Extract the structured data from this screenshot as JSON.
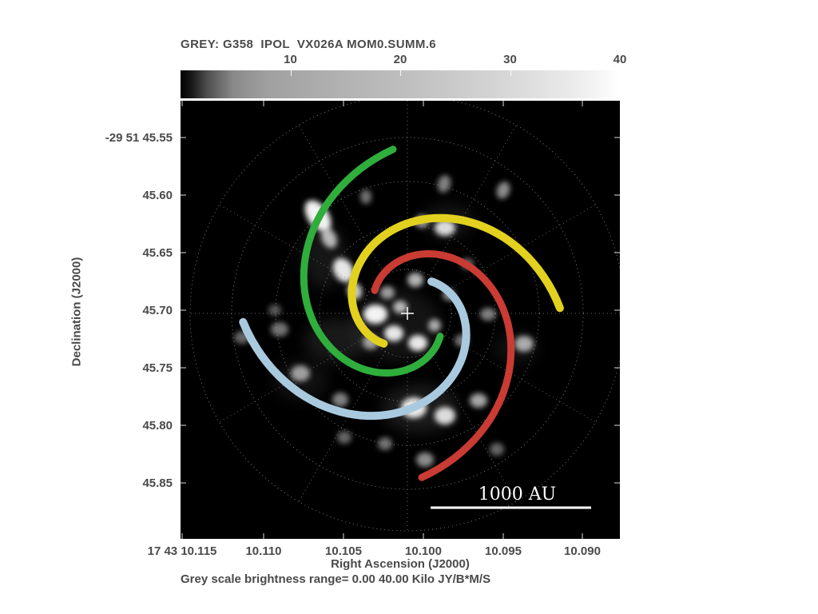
{
  "chart_data": {
    "type": "heatmap",
    "title": "GREY: G358  IPOL  VX026A MOM0.SUMM.6",
    "xlabel": "Right Ascension (J2000)",
    "ylabel": "Declination (J2000)",
    "caption": "Grey scale brightness range= 0.00 40.00 Kilo JY/B*M/S",
    "x_ticks": [
      "17 43 10.115",
      "10.110",
      "10.105",
      "10.100",
      "10.095",
      "10.090"
    ],
    "y_ticks": [
      "-29 51 45.55",
      "45.60",
      "45.65",
      "45.70",
      "45.75",
      "45.80",
      "45.85"
    ],
    "colorbar": {
      "tick_values": [
        10,
        20,
        30,
        40
      ],
      "range": [
        0,
        40
      ]
    },
    "center_marker": {
      "x": 284,
      "y": 266
    },
    "polar_grid": {
      "circle_radii": [
        55,
        110,
        165,
        220,
        272
      ],
      "n_spokes": 12,
      "spoke_inner_r": 55,
      "spoke_outer_r": 272
    },
    "spiral_arms": [
      {
        "name": "green",
        "color": "#2fae3c",
        "phi_out_deg": -95,
        "wrap_deg": 230,
        "r_in": 50,
        "r_out": 206,
        "width": 9
      },
      {
        "name": "yellow",
        "color": "#e2d11f",
        "phi_out_deg": -2,
        "wrap_deg": 230,
        "r_in": 48,
        "r_out": 191,
        "width": 10
      },
      {
        "name": "red",
        "color": "#c93b33",
        "phi_out_deg": 85,
        "wrap_deg": 230,
        "r_in": 50,
        "r_out": 206,
        "width": 9
      },
      {
        "name": "lightblue",
        "color": "#a9c9de",
        "phi_out_deg": 177,
        "wrap_deg": 230,
        "r_in": 50,
        "r_out": 206,
        "width": 10
      }
    ],
    "scalebar": {
      "label": "1000 AU",
      "x1": 313,
      "x2": 514,
      "y": 509
    },
    "maser_blobs": [
      {
        "x": 172,
        "y": 144,
        "rx": 13,
        "ry": 22,
        "rot": -35,
        "o": 0.95
      },
      {
        "x": 186,
        "y": 172,
        "rx": 9,
        "ry": 13,
        "rot": -25,
        "o": 0.7
      },
      {
        "x": 204,
        "y": 212,
        "rx": 12,
        "ry": 16,
        "rot": -30,
        "o": 0.9
      },
      {
        "x": 218,
        "y": 238,
        "rx": 9,
        "ry": 11,
        "rot": -20,
        "o": 0.8
      },
      {
        "x": 232,
        "y": 120,
        "rx": 7,
        "ry": 9,
        "rot": 0,
        "o": 0.45
      },
      {
        "x": 330,
        "y": 104,
        "rx": 8,
        "ry": 11,
        "rot": 15,
        "o": 0.5
      },
      {
        "x": 404,
        "y": 112,
        "rx": 8,
        "ry": 11,
        "rot": 20,
        "o": 0.55
      },
      {
        "x": 331,
        "y": 159,
        "rx": 13,
        "ry": 10,
        "rot": 0,
        "o": 0.85
      },
      {
        "x": 302,
        "y": 151,
        "rx": 9,
        "ry": 8,
        "rot": 0,
        "o": 0.6
      },
      {
        "x": 359,
        "y": 204,
        "rx": 8,
        "ry": 7,
        "rot": 0,
        "o": 0.4
      },
      {
        "x": 244,
        "y": 267,
        "rx": 15,
        "ry": 12,
        "rot": 0,
        "o": 0.95
      },
      {
        "x": 267,
        "y": 291,
        "rx": 12,
        "ry": 10,
        "rot": 0,
        "o": 0.9
      },
      {
        "x": 297,
        "y": 303,
        "rx": 12,
        "ry": 10,
        "rot": 0,
        "o": 0.9
      },
      {
        "x": 318,
        "y": 281,
        "rx": 8,
        "ry": 8,
        "rot": 0,
        "o": 0.65
      },
      {
        "x": 336,
        "y": 243,
        "rx": 8,
        "ry": 7,
        "rot": 0,
        "o": 0.55
      },
      {
        "x": 385,
        "y": 267,
        "rx": 10,
        "ry": 8,
        "rot": 0,
        "o": 0.5
      },
      {
        "x": 430,
        "y": 304,
        "rx": 12,
        "ry": 10,
        "rot": 0,
        "o": 0.65
      },
      {
        "x": 124,
        "y": 286,
        "rx": 11,
        "ry": 9,
        "rot": 0,
        "o": 0.45
      },
      {
        "x": 77,
        "y": 296,
        "rx": 10,
        "ry": 8,
        "rot": 0,
        "o": 0.4
      },
      {
        "x": 150,
        "y": 341,
        "rx": 12,
        "ry": 10,
        "rot": 0,
        "o": 0.6
      },
      {
        "x": 200,
        "y": 374,
        "rx": 10,
        "ry": 9,
        "rot": 0,
        "o": 0.5
      },
      {
        "x": 292,
        "y": 384,
        "rx": 16,
        "ry": 13,
        "rot": 0,
        "o": 0.9
      },
      {
        "x": 331,
        "y": 394,
        "rx": 13,
        "ry": 11,
        "rot": 0,
        "o": 0.85
      },
      {
        "x": 373,
        "y": 375,
        "rx": 11,
        "ry": 9,
        "rot": 0,
        "o": 0.65
      },
      {
        "x": 256,
        "y": 429,
        "rx": 9,
        "ry": 8,
        "rot": 0,
        "o": 0.45
      },
      {
        "x": 306,
        "y": 449,
        "rx": 11,
        "ry": 9,
        "rot": 0,
        "o": 0.55
      },
      {
        "x": 396,
        "y": 436,
        "rx": 9,
        "ry": 8,
        "rot": 0,
        "o": 0.4
      },
      {
        "x": 205,
        "y": 421,
        "rx": 9,
        "ry": 8,
        "rot": 0,
        "o": 0.4
      },
      {
        "x": 294,
        "y": 224,
        "rx": 10,
        "ry": 9,
        "rot": 0,
        "o": 0.7
      },
      {
        "x": 259,
        "y": 240,
        "rx": 9,
        "ry": 8,
        "rot": 0,
        "o": 0.6
      },
      {
        "x": 352,
        "y": 300,
        "rx": 9,
        "ry": 8,
        "rot": 0,
        "o": 0.45
      },
      {
        "x": 118,
        "y": 262,
        "rx": 8,
        "ry": 7,
        "rot": 0,
        "o": 0.35
      },
      {
        "x": 238,
        "y": 302,
        "rx": 10,
        "ry": 9,
        "rot": 0,
        "o": 0.6
      },
      {
        "x": 275,
        "y": 258,
        "rx": 9,
        "ry": 8,
        "rot": 0,
        "o": 0.7
      }
    ],
    "halos": [
      {
        "x": 195,
        "y": 300,
        "rx": 40,
        "ry": 28,
        "o": 0.16
      },
      {
        "x": 300,
        "y": 385,
        "rx": 48,
        "ry": 30,
        "o": 0.18
      },
      {
        "x": 180,
        "y": 195,
        "rx": 28,
        "ry": 40,
        "o": 0.14
      },
      {
        "x": 335,
        "y": 150,
        "rx": 32,
        "ry": 22,
        "o": 0.13
      },
      {
        "x": 270,
        "y": 280,
        "rx": 55,
        "ry": 45,
        "o": 0.13
      },
      {
        "x": 150,
        "y": 350,
        "rx": 35,
        "ry": 25,
        "o": 0.11
      },
      {
        "x": 420,
        "y": 310,
        "rx": 28,
        "ry": 20,
        "o": 0.11
      }
    ]
  }
}
